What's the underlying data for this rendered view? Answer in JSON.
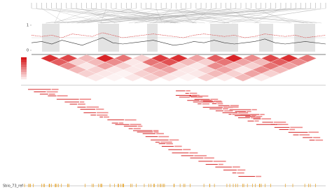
{
  "tracks": {
    "ylim": [
      0,
      1
    ],
    "yticks": [
      0,
      1
    ],
    "series": [
      {
        "color": "#d62728",
        "values": [
          0.6,
          0.55,
          0.6,
          0.5,
          0.65,
          0.6,
          0.55,
          0.7,
          0.6,
          0.5,
          0.55,
          0.6,
          0.65,
          0.6,
          0.55,
          0.5,
          0.6,
          0.65,
          0.6,
          0.55,
          0.6,
          0.5,
          0.55,
          0.65,
          0.6,
          0.55,
          0.6,
          0.5,
          0.55,
          0.6
        ]
      },
      {
        "color": "#333333",
        "values": [
          0.3,
          0.35,
          0.25,
          0.4,
          0.3,
          0.2,
          0.35,
          0.5,
          0.3,
          0.25,
          0.3,
          0.35,
          0.4,
          0.3,
          0.2,
          0.25,
          0.35,
          0.3,
          0.4,
          0.3,
          0.25,
          0.3,
          0.35,
          0.45,
          0.3,
          0.25,
          0.3,
          0.35,
          0.3,
          0.25
        ]
      }
    ]
  },
  "heatmap": {
    "color": "#d7191c",
    "values": [
      [
        0.9,
        0.8,
        0.3,
        0.95,
        0.6,
        0.2,
        0.85,
        0.9,
        0.4,
        0.7,
        0.95,
        0.5,
        0.8,
        0.9,
        0.6
      ],
      [
        0.7,
        0.2,
        0.3,
        0.5,
        0.1,
        0.6,
        0.75,
        0.3,
        0.2,
        0.6,
        0.4,
        0.3,
        0.7,
        0.5
      ],
      [
        0.5,
        0.1,
        0.4,
        0.2,
        0.1,
        0.5,
        0.2,
        0.1,
        0.5,
        0.3,
        0.2,
        0.6,
        0.4
      ],
      [
        0.3,
        0.2,
        0.1,
        0.1,
        0.3,
        0.4,
        0.1,
        0.2,
        0.4,
        0.1,
        0.5,
        0.3
      ],
      [
        0.2,
        0.1,
        0.05,
        0.2,
        0.3,
        0.1,
        0.1,
        0.3,
        0.2,
        0.4,
        0.2
      ],
      [
        0.1,
        0.05,
        0.1,
        0.2,
        0.1,
        0.05,
        0.2,
        0.1,
        0.3,
        0.1
      ]
    ]
  },
  "footer": {
    "label": "Sbio_73_ref"
  }
}
